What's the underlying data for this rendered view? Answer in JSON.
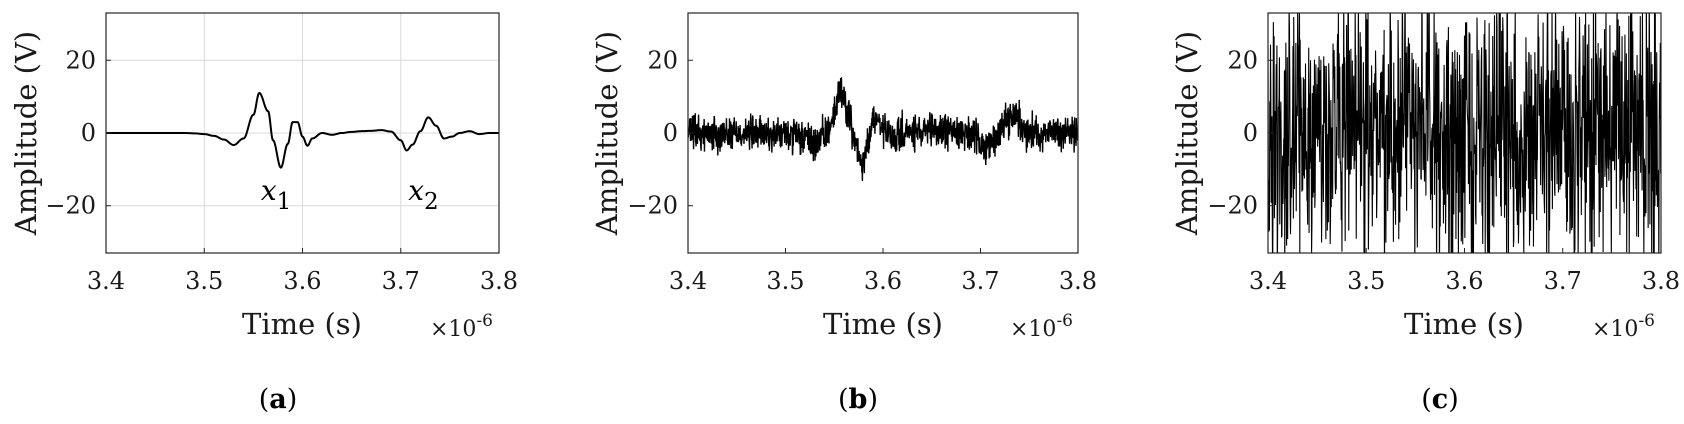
{
  "chart_data": [
    {
      "type": "line",
      "panel_label": "a",
      "signal": "clean",
      "xlabel": "Time (s)",
      "ylabel": "Amplitude (V)",
      "x_multiplier": "×10-6",
      "xlim": [
        3.4,
        3.8
      ],
      "ylim": [
        -33,
        33
      ],
      "xticks": [
        3.4,
        3.5,
        3.6,
        3.7,
        3.8
      ],
      "xtick_labels": [
        "3.4",
        "3.5",
        "3.6",
        "3.7",
        "3.8"
      ],
      "yticks": [
        -20,
        0,
        20
      ],
      "ytick_labels": [
        "−20",
        "0",
        "20"
      ],
      "grid": true,
      "annotations": [
        {
          "text": "x",
          "sub": "1",
          "x": 3.58,
          "y": -14
        },
        {
          "text": "x",
          "sub": "2",
          "x": 3.73,
          "y": -14
        }
      ],
      "series": [
        {
          "x": [
            3.4,
            3.42,
            3.44,
            3.46,
            3.48,
            3.49,
            3.5,
            3.51,
            3.52,
            3.53,
            3.54,
            3.55,
            3.556,
            3.565,
            3.57,
            3.578,
            3.585,
            3.59,
            3.595,
            3.6,
            3.605,
            3.61,
            3.62,
            3.63,
            3.64,
            3.65,
            3.66,
            3.67,
            3.68,
            3.69,
            3.7,
            3.706,
            3.712,
            3.72,
            3.728,
            3.736,
            3.744,
            3.752,
            3.76,
            3.77,
            3.78,
            3.79,
            3.8
          ],
          "values": [
            0,
            0,
            0,
            0,
            0,
            -0.1,
            -0.3,
            -0.8,
            -1.8,
            -3.3,
            -1.5,
            5,
            11,
            6,
            -2,
            -9.5,
            -3,
            3,
            3,
            -1,
            -3.5,
            -1.5,
            0,
            -0.5,
            0,
            0.3,
            0.5,
            0.6,
            0.8,
            0.4,
            -2,
            -4.8,
            -3.2,
            0.5,
            4.3,
            2,
            -1.5,
            -1,
            0,
            0.5,
            -0.3,
            0,
            0
          ]
        }
      ]
    },
    {
      "type": "line",
      "panel_label": "b",
      "signal": "noisy",
      "noise_amplitude": 3.5,
      "xlabel": "Time (s)",
      "ylabel": "Amplitude (V)",
      "x_multiplier": "×10-6",
      "xlim": [
        3.4,
        3.8
      ],
      "ylim": [
        -33,
        33
      ],
      "xticks": [
        3.4,
        3.5,
        3.6,
        3.7,
        3.8
      ],
      "xtick_labels": [
        "3.4",
        "3.5",
        "3.6",
        "3.7",
        "3.8"
      ],
      "yticks": [
        -20,
        0,
        20
      ],
      "ytick_labels": [
        "−20",
        "0",
        "20"
      ],
      "grid": false,
      "series": [
        {
          "x": [
            3.4,
            3.45,
            3.5,
            3.52,
            3.53,
            3.54,
            3.55,
            3.556,
            3.565,
            3.57,
            3.578,
            3.585,
            3.59,
            3.6,
            3.61,
            3.62,
            3.64,
            3.66,
            3.68,
            3.7,
            3.706,
            3.712,
            3.72,
            3.728,
            3.736,
            3.744,
            3.76,
            3.8
          ],
          "values": [
            0,
            0,
            -0.5,
            -1.5,
            -3,
            -1,
            5,
            12,
            6,
            -2,
            -9,
            -3,
            4,
            1,
            -2,
            0,
            0,
            0.5,
            0.5,
            -2,
            -4,
            -3,
            1,
            4,
            5,
            1,
            0,
            0
          ]
        }
      ]
    },
    {
      "type": "line",
      "panel_label": "c",
      "signal": "heavy-noise",
      "noise_amplitude": 26,
      "xlabel": "Time (s)",
      "ylabel": "Amplitude (V)",
      "x_multiplier": "×10-6",
      "xlim": [
        3.4,
        3.8
      ],
      "ylim": [
        -33,
        33
      ],
      "xticks": [
        3.4,
        3.5,
        3.6,
        3.7,
        3.8
      ],
      "xtick_labels": [
        "3.4",
        "3.5",
        "3.6",
        "3.7",
        "3.8"
      ],
      "yticks": [
        -20,
        0,
        20
      ],
      "ytick_labels": [
        "−20",
        "0",
        "20"
      ],
      "grid": false,
      "series": [
        {
          "x": [
            3.4,
            3.5,
            3.55,
            3.56,
            3.57,
            3.58,
            3.6,
            3.7,
            3.8
          ],
          "values": [
            0,
            0,
            5,
            12,
            -2,
            -9,
            0,
            0,
            0
          ]
        }
      ]
    }
  ],
  "colors": {
    "line": "#000000",
    "frame": "#262626",
    "grid": "#d9d9d9",
    "text": "#1a1a1a"
  }
}
